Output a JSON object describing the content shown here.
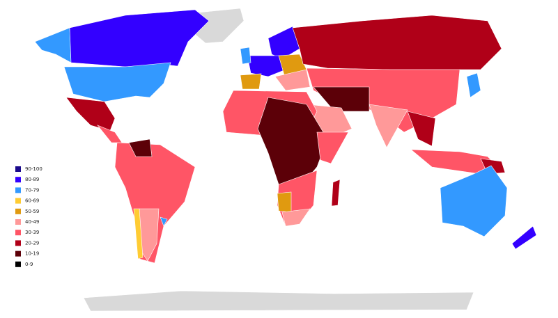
{
  "legend": {
    "items": [
      {
        "label": "90-100",
        "color": "#1a0a8c"
      },
      {
        "label": "80-89",
        "color": "#3300ff"
      },
      {
        "label": "70-79",
        "color": "#3399ff"
      },
      {
        "label": "60-69",
        "color": "#ffcc33"
      },
      {
        "label": "50-59",
        "color": "#e09a10"
      },
      {
        "label": "40-49",
        "color": "#ff9999"
      },
      {
        "label": "30-39",
        "color": "#ff5566"
      },
      {
        "label": "20-29",
        "color": "#b00018"
      },
      {
        "label": "10-19",
        "color": "#5c0008"
      },
      {
        "label": "0-9",
        "color": "#000000"
      }
    ]
  }
}
